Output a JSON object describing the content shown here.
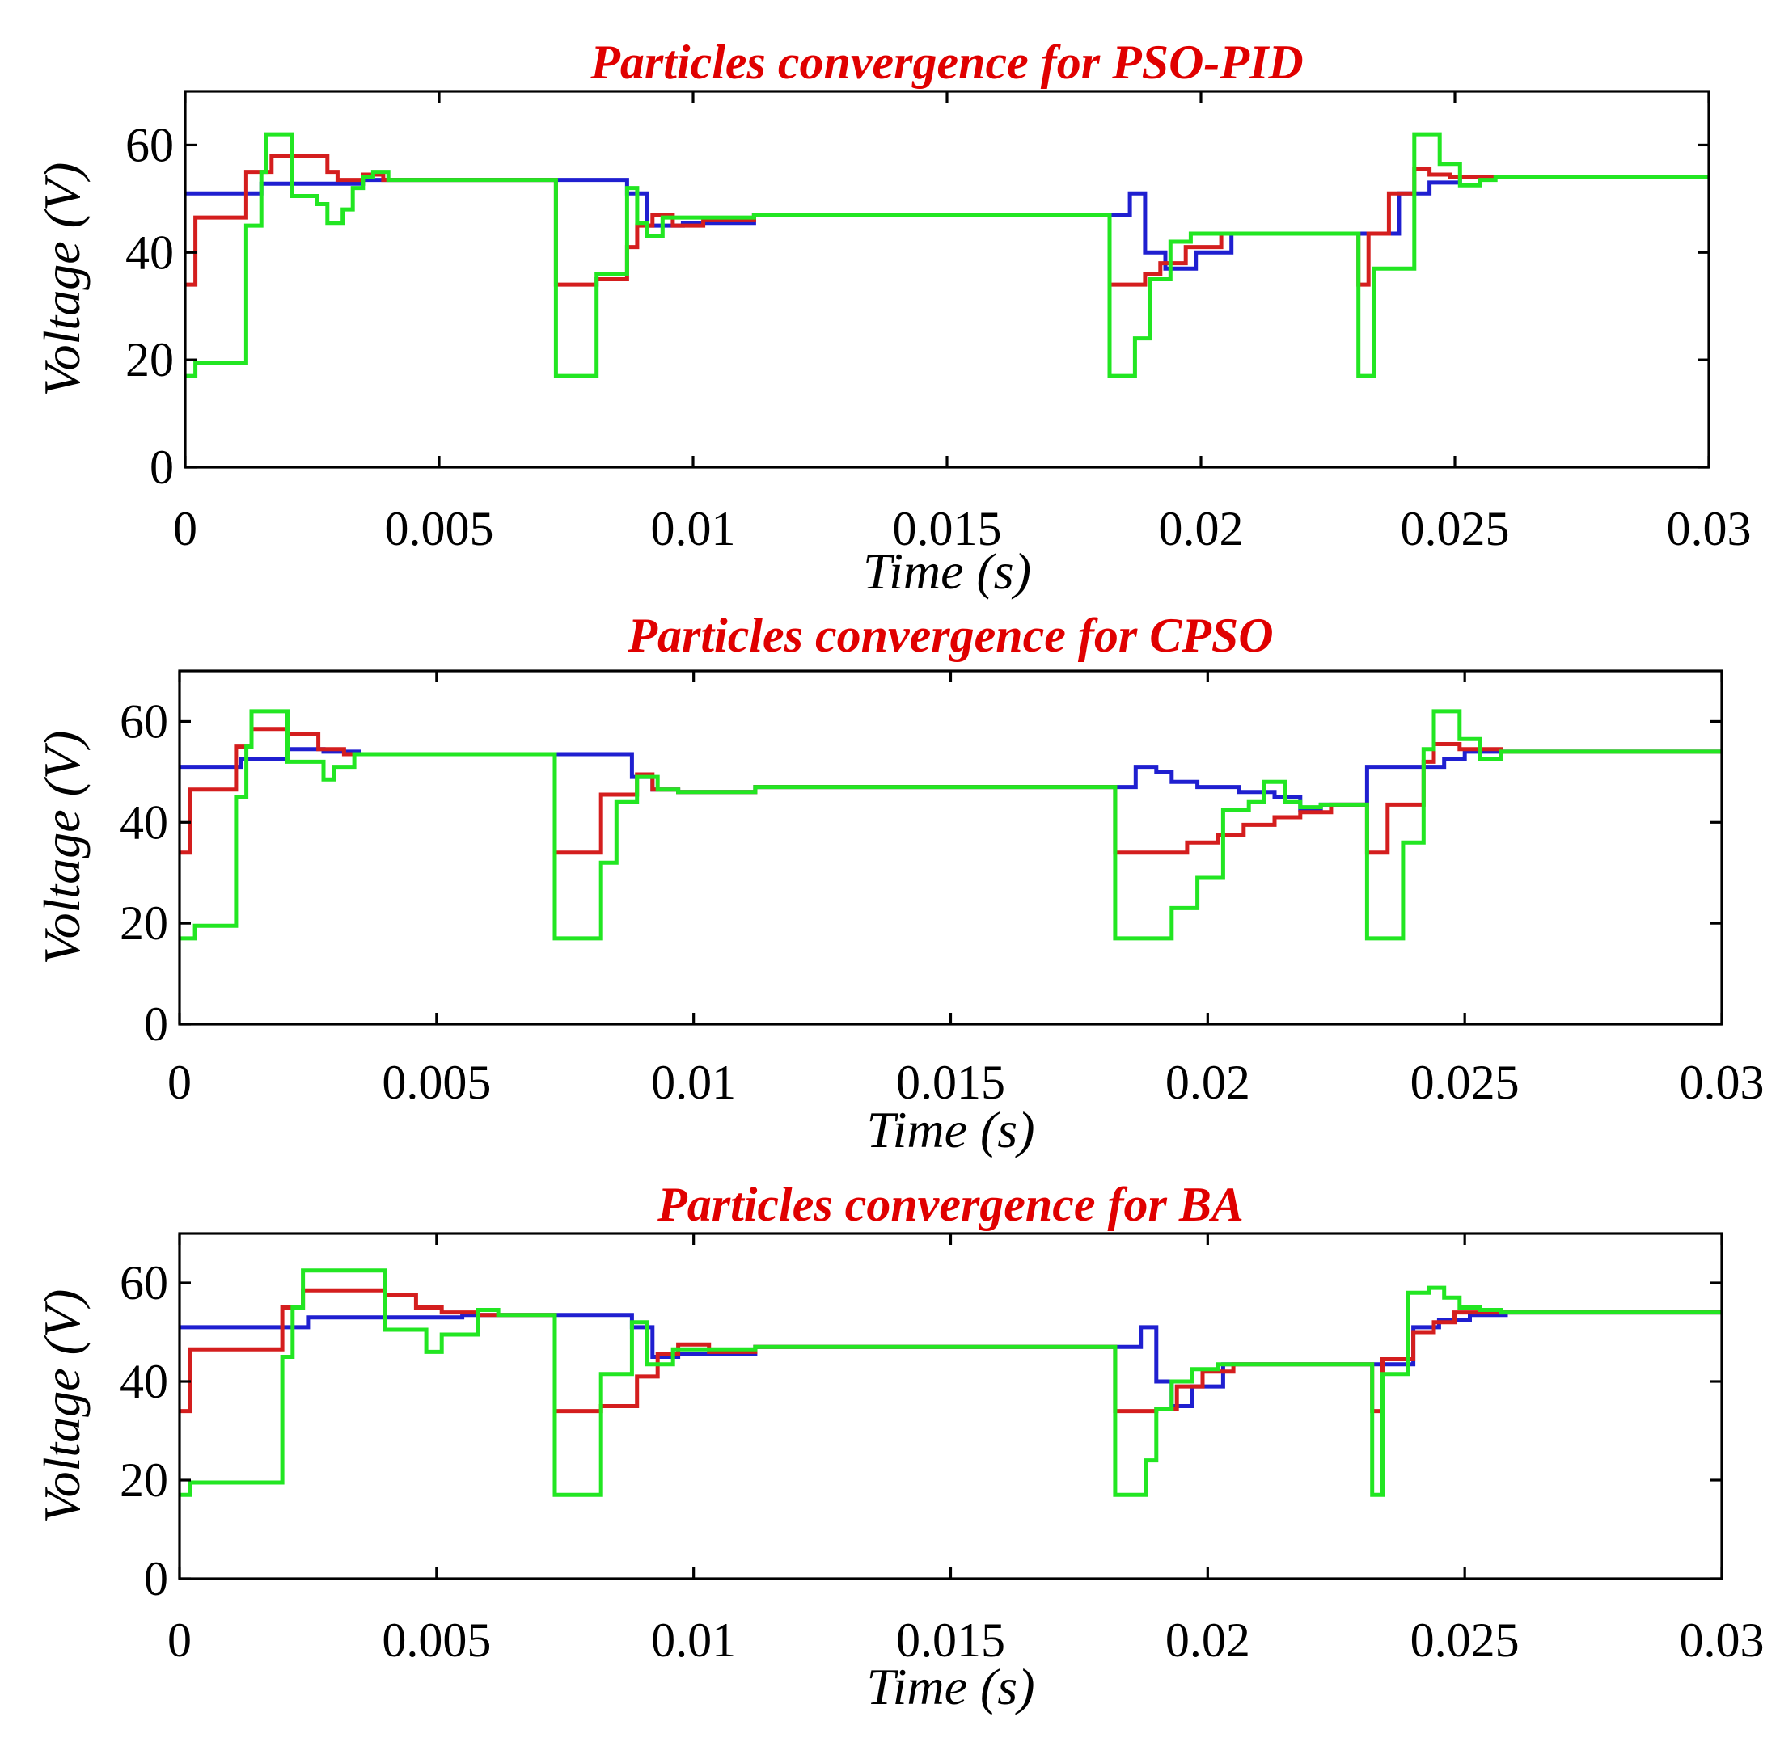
{
  "colors": {
    "title": "#e00000",
    "series_blue": "#1f1fd0",
    "series_red": "#d41e1e",
    "series_green": "#22e622",
    "axes": "#000000",
    "background": "#ffffff"
  },
  "chart_data": [
    {
      "type": "line",
      "step": true,
      "title": "Particles convergence for PSO-PID",
      "xlabel": "Time (s)",
      "ylabel": "Voltage (V)",
      "xlim": [
        0,
        0.03
      ],
      "ylim": [
        0,
        70
      ],
      "xticks": [
        "0",
        "0.005",
        "0.01",
        "0.015",
        "0.02",
        "0.025",
        "0.03"
      ],
      "xtick_values": [
        0,
        0.005,
        0.01,
        0.015,
        0.02,
        0.025,
        0.03
      ],
      "yticks": [
        "0",
        "20",
        "40",
        "60"
      ],
      "ytick_values": [
        0,
        20,
        40,
        60
      ],
      "grid": false,
      "series": [
        {
          "color": "series_blue",
          "x": [
            0,
            0.0015,
            0.0035,
            0.0073,
            0.0087,
            0.0091,
            0.0098,
            0.0112,
            0.0182,
            0.0186,
            0.0189,
            0.0193,
            0.0199,
            0.0206,
            0.0231,
            0.0239,
            0.0245,
            0.0251,
            0.03
          ],
          "y": [
            51,
            52.8,
            53.5,
            53.5,
            51,
            45,
            45.5,
            47,
            47,
            51,
            40,
            37,
            40,
            43.5,
            43.5,
            51,
            53,
            54,
            54
          ]
        },
        {
          "color": "series_red",
          "x": [
            0,
            0.0002,
            0.0012,
            0.0017,
            0.0028,
            0.003,
            0.0035,
            0.0039,
            0.0073,
            0.0081,
            0.0087,
            0.0089,
            0.0092,
            0.0096,
            0.0102,
            0.0112,
            0.0182,
            0.0189,
            0.0192,
            0.0197,
            0.0204,
            0.0231,
            0.0233,
            0.0237,
            0.0242,
            0.0245,
            0.0249,
            0.0257,
            0.03
          ],
          "y": [
            34,
            46.5,
            55,
            58,
            55,
            53.5,
            54.5,
            53.5,
            34,
            35,
            41,
            45,
            47,
            45,
            46,
            47,
            34,
            36,
            38,
            41,
            43.5,
            34,
            43.5,
            51,
            55.5,
            54.5,
            54,
            54,
            54
          ]
        },
        {
          "color": "series_green",
          "x": [
            0,
            0.0002,
            0.0012,
            0.0015,
            0.0016,
            0.0021,
            0.0026,
            0.0028,
            0.0031,
            0.0033,
            0.0035,
            0.0037,
            0.004,
            0.0073,
            0.008,
            0.0081,
            0.0087,
            0.0089,
            0.0091,
            0.0094,
            0.0112,
            0.0182,
            0.0187,
            0.019,
            0.0194,
            0.0198,
            0.0203,
            0.0231,
            0.0234,
            0.0242,
            0.0247,
            0.0251,
            0.0255,
            0.0258,
            0.03
          ],
          "y": [
            17,
            19.5,
            45,
            55,
            62,
            50.5,
            49,
            45.5,
            48,
            52,
            54,
            55,
            53.5,
            17,
            17,
            36,
            52,
            45.5,
            43,
            46.5,
            47,
            17,
            24,
            35,
            42,
            43.5,
            43.5,
            17,
            37,
            62,
            56.5,
            52.5,
            53.5,
            54,
            54
          ]
        }
      ]
    },
    {
      "type": "line",
      "step": true,
      "title": "Particles convergence for CPSO",
      "xlabel": "Time (s)",
      "ylabel": "Voltage (V)",
      "xlim": [
        0,
        0.03
      ],
      "ylim": [
        0,
        70
      ],
      "xticks": [
        "0",
        "0.005",
        "0.01",
        "0.015",
        "0.02",
        "0.025",
        "0.03"
      ],
      "xtick_values": [
        0,
        0.005,
        0.01,
        0.015,
        0.02,
        0.025,
        0.03
      ],
      "yticks": [
        "0",
        "20",
        "40",
        "60"
      ],
      "ytick_values": [
        0,
        20,
        40,
        60
      ],
      "grid": false,
      "series": [
        {
          "color": "series_blue",
          "x": [
            0,
            0.0012,
            0.0021,
            0.0028,
            0.0035,
            0.0073,
            0.0088,
            0.0092,
            0.0097,
            0.0112,
            0.0182,
            0.0186,
            0.019,
            0.0193,
            0.0198,
            0.0206,
            0.0213,
            0.0218,
            0.0222,
            0.0229,
            0.0231,
            0.024,
            0.0246,
            0.025,
            0.0258,
            0.03
          ],
          "y": [
            51,
            52.5,
            54.5,
            54,
            53.5,
            53.5,
            49,
            46.5,
            46,
            47,
            47,
            51,
            50,
            48,
            47,
            46,
            45,
            42.5,
            43.5,
            43.5,
            51,
            51,
            52.5,
            54,
            54,
            54
          ]
        },
        {
          "color": "series_red",
          "x": [
            0,
            0.0002,
            0.0011,
            0.0014,
            0.0021,
            0.0027,
            0.0032,
            0.0037,
            0.0073,
            0.0082,
            0.0089,
            0.0092,
            0.0097,
            0.0112,
            0.0182,
            0.0196,
            0.0202,
            0.0207,
            0.0213,
            0.0218,
            0.0224,
            0.023,
            0.0231,
            0.0235,
            0.0242,
            0.0244,
            0.0249,
            0.0257,
            0.03
          ],
          "y": [
            34,
            46.5,
            55,
            58.5,
            57.5,
            54.5,
            53.5,
            53.5,
            34,
            45.5,
            49.5,
            46.5,
            46,
            47,
            34,
            36,
            37.5,
            39.5,
            41,
            42,
            43.5,
            43.5,
            34,
            43.5,
            52,
            55.5,
            54.5,
            54,
            54
          ]
        },
        {
          "color": "series_green",
          "x": [
            0,
            0.0003,
            0.0011,
            0.0013,
            0.0014,
            0.0021,
            0.0028,
            0.003,
            0.0034,
            0.0036,
            0.0073,
            0.0082,
            0.0085,
            0.0089,
            0.0093,
            0.0097,
            0.0112,
            0.0182,
            0.0193,
            0.0198,
            0.0203,
            0.0208,
            0.0211,
            0.0215,
            0.0218,
            0.0222,
            0.0229,
            0.0231,
            0.0238,
            0.0242,
            0.0244,
            0.0249,
            0.0253,
            0.0257,
            0.03
          ],
          "y": [
            17,
            19.5,
            45,
            55,
            62,
            52,
            48.5,
            51,
            53.5,
            53.5,
            17,
            32,
            44,
            49,
            46.5,
            46,
            47,
            17,
            23,
            29,
            42.5,
            44,
            48,
            44,
            43,
            43.5,
            43.5,
            17,
            36,
            54.5,
            62,
            56.5,
            52.5,
            54,
            54
          ]
        }
      ]
    },
    {
      "type": "line",
      "step": true,
      "title": "Particles convergence for BA",
      "xlabel": "Time (s)",
      "ylabel": "Voltage (V)",
      "xlim": [
        0,
        0.03
      ],
      "ylim": [
        0,
        70
      ],
      "xticks": [
        "0",
        "0.005",
        "0.01",
        "0.015",
        "0.02",
        "0.025",
        "0.03"
      ],
      "xtick_values": [
        0,
        0.005,
        0.01,
        0.015,
        0.02,
        0.025,
        0.03
      ],
      "yticks": [
        "0",
        "20",
        "40",
        "60"
      ],
      "ytick_values": [
        0,
        20,
        40,
        60
      ],
      "grid": false,
      "series": [
        {
          "color": "series_blue",
          "x": [
            0,
            0.0025,
            0.0055,
            0.0073,
            0.0088,
            0.0092,
            0.0097,
            0.0112,
            0.0182,
            0.0187,
            0.019,
            0.0193,
            0.0197,
            0.0203,
            0.0232,
            0.024,
            0.0245,
            0.0251,
            0.0258,
            0.03
          ],
          "y": [
            51,
            53,
            53.5,
            53.5,
            51,
            45,
            45.5,
            47,
            47,
            51,
            40,
            35,
            39,
            43.5,
            43.5,
            51,
            52.5,
            53.5,
            54,
            54
          ]
        },
        {
          "color": "series_red",
          "x": [
            0,
            0.0002,
            0.002,
            0.0024,
            0.004,
            0.0046,
            0.0051,
            0.0058,
            0.0073,
            0.0082,
            0.0089,
            0.0093,
            0.0097,
            0.0103,
            0.0112,
            0.0182,
            0.019,
            0.0194,
            0.0199,
            0.0205,
            0.0232,
            0.0234,
            0.024,
            0.0244,
            0.0248,
            0.0256,
            0.03
          ],
          "y": [
            34,
            46.5,
            55,
            58.5,
            57.5,
            55,
            54,
            53.5,
            34,
            35,
            41,
            45.5,
            47.5,
            46,
            47,
            34,
            34.5,
            39,
            42,
            43.5,
            34,
            44.5,
            50,
            52,
            54,
            54,
            54
          ]
        },
        {
          "color": "series_green",
          "x": [
            0,
            0.0002,
            0.002,
            0.0022,
            0.0024,
            0.004,
            0.0048,
            0.0051,
            0.0058,
            0.0062,
            0.0073,
            0.0082,
            0.0088,
            0.0091,
            0.0096,
            0.0112,
            0.0182,
            0.0188,
            0.019,
            0.0193,
            0.0197,
            0.0202,
            0.0232,
            0.0234,
            0.0239,
            0.0243,
            0.0246,
            0.0249,
            0.0253,
            0.0257,
            0.03
          ],
          "y": [
            17,
            19.5,
            45,
            55,
            62.5,
            50.5,
            46,
            49.5,
            54.5,
            53.5,
            17,
            41.5,
            52,
            43.5,
            46.5,
            47,
            17,
            24,
            34.5,
            40,
            42.5,
            43.5,
            17,
            41.5,
            58,
            59,
            57,
            55,
            54.5,
            54,
            54
          ]
        }
      ]
    }
  ]
}
